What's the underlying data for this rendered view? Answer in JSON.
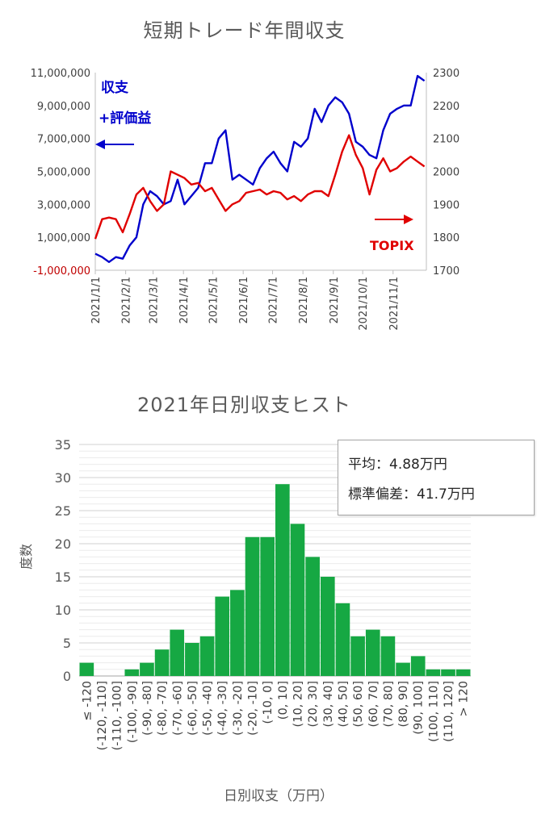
{
  "chart_data": [
    {
      "type": "line",
      "title": "短期トレード年間収支",
      "left_axis": {
        "ticks": [
          "11,000,000",
          "9,000,000",
          "7,000,000",
          "5,000,000",
          "3,000,000",
          "1,000,000",
          "-1,000,000"
        ],
        "tick_values": [
          11000000,
          9000000,
          7000000,
          5000000,
          3000000,
          1000000,
          -1000000
        ],
        "ylim": [
          -1000000,
          11000000
        ],
        "negative_color": "#c00000"
      },
      "right_axis": {
        "ticks": [
          "2300",
          "2200",
          "2100",
          "2000",
          "1900",
          "1800",
          "1700"
        ],
        "tick_values": [
          2300,
          2200,
          2100,
          2000,
          1900,
          1800,
          1700
        ],
        "ylim": [
          1700,
          2300
        ]
      },
      "x_ticks": [
        "2021/1/1",
        "2021/2/1",
        "2021/3/1",
        "2021/4/1",
        "2021/5/1",
        "2021/6/1",
        "2021/7/1",
        "2021/8/1",
        "2021/9/1",
        "2021/10/1",
        "2021/11/1"
      ],
      "series": [
        {
          "name": "収支\n+評価益",
          "label_lines": [
            "収支",
            "+評価益"
          ],
          "axis": "left",
          "color": "#0000cc",
          "x": [
            "2021-01-01",
            "2021-01-08",
            "2021-01-15",
            "2021-01-22",
            "2021-01-29",
            "2021-02-05",
            "2021-02-12",
            "2021-02-19",
            "2021-02-26",
            "2021-03-05",
            "2021-03-12",
            "2021-03-19",
            "2021-03-26",
            "2021-04-02",
            "2021-04-09",
            "2021-04-16",
            "2021-04-23",
            "2021-04-30",
            "2021-05-07",
            "2021-05-14",
            "2021-05-21",
            "2021-05-28",
            "2021-06-04",
            "2021-06-11",
            "2021-06-18",
            "2021-06-25",
            "2021-07-02",
            "2021-07-09",
            "2021-07-16",
            "2021-07-23",
            "2021-07-30",
            "2021-08-06",
            "2021-08-13",
            "2021-08-20",
            "2021-08-27",
            "2021-09-03",
            "2021-09-10",
            "2021-09-17",
            "2021-09-24",
            "2021-10-01",
            "2021-10-08",
            "2021-10-15",
            "2021-10-22",
            "2021-10-29",
            "2021-11-05",
            "2021-11-12",
            "2021-11-19",
            "2021-11-26",
            "2021-12-03"
          ],
          "values": [
            0,
            -200000,
            -500000,
            -200000,
            -300000,
            500000,
            1000000,
            3000000,
            3800000,
            3500000,
            3000000,
            3200000,
            4500000,
            3000000,
            3500000,
            4000000,
            5500000,
            5500000,
            7000000,
            7500000,
            4500000,
            4800000,
            4500000,
            4200000,
            5200000,
            5800000,
            6200000,
            5500000,
            5000000,
            6800000,
            6500000,
            7000000,
            8800000,
            8000000,
            9000000,
            9500000,
            9200000,
            8500000,
            6800000,
            6500000,
            6000000,
            5800000,
            7500000,
            8500000,
            8800000,
            9000000,
            9000000,
            10800000,
            10500000
          ]
        },
        {
          "name": "TOPIX",
          "axis": "right",
          "color": "#e00000",
          "x": [
            "2021-01-01",
            "2021-01-08",
            "2021-01-15",
            "2021-01-22",
            "2021-01-29",
            "2021-02-05",
            "2021-02-12",
            "2021-02-19",
            "2021-02-26",
            "2021-03-05",
            "2021-03-12",
            "2021-03-19",
            "2021-03-26",
            "2021-04-02",
            "2021-04-09",
            "2021-04-16",
            "2021-04-23",
            "2021-04-30",
            "2021-05-07",
            "2021-05-14",
            "2021-05-21",
            "2021-05-28",
            "2021-06-04",
            "2021-06-11",
            "2021-06-18",
            "2021-06-25",
            "2021-07-02",
            "2021-07-09",
            "2021-07-16",
            "2021-07-23",
            "2021-07-30",
            "2021-08-06",
            "2021-08-13",
            "2021-08-20",
            "2021-08-27",
            "2021-09-03",
            "2021-09-10",
            "2021-09-17",
            "2021-09-24",
            "2021-10-01",
            "2021-10-08",
            "2021-10-15",
            "2021-10-22",
            "2021-10-29",
            "2021-11-05",
            "2021-11-12",
            "2021-11-19",
            "2021-11-26",
            "2021-12-03"
          ],
          "values": [
            1795,
            1855,
            1860,
            1855,
            1815,
            1870,
            1930,
            1950,
            1910,
            1880,
            1900,
            2000,
            1990,
            1980,
            1960,
            1965,
            1940,
            1950,
            1915,
            1880,
            1900,
            1910,
            1935,
            1940,
            1945,
            1930,
            1940,
            1935,
            1915,
            1925,
            1910,
            1930,
            1940,
            1940,
            1925,
            1990,
            2060,
            2110,
            2050,
            2010,
            1930,
            2005,
            2040,
            2000,
            2010,
            2030,
            2045,
            2030,
            2015
          ]
        }
      ],
      "annotations": {
        "arrow_left": "left",
        "arrow_right": "right"
      },
      "grid": false,
      "legend": "none"
    },
    {
      "type": "bar",
      "title": "2021年日別収支ヒスト",
      "xlabel": "日別収支（万円）",
      "ylabel": "度数",
      "ylim": [
        0,
        35
      ],
      "y_ticks": [
        0,
        5,
        10,
        15,
        20,
        25,
        30,
        35
      ],
      "categories": [
        "≤ -120",
        "(-120, -110]",
        "(-110, -100]",
        "(-100, -90]",
        "(-90, -80]",
        "(-80, -70]",
        "(-70, -60]",
        "(-60, -50]",
        "(-50, -40]",
        "(-40, -30]",
        "(-30, -20]",
        "(-20, -10]",
        "(-10, 0]",
        "(0, 10]",
        "(10, 20]",
        "(20, 30]",
        "(30, 40]",
        "(40, 50]",
        "(50, 60]",
        "(60, 70]",
        "(70, 80]",
        "(80, 90]",
        "(90, 100]",
        "(100, 110]",
        "(110, 120]",
        "> 120"
      ],
      "values": [
        2,
        0,
        0,
        1,
        2,
        4,
        7,
        5,
        6,
        12,
        13,
        21,
        21,
        29,
        23,
        18,
        15,
        11,
        6,
        7,
        6,
        2,
        3,
        1,
        1,
        1
      ],
      "bar_color": "#16a843",
      "grid": true,
      "legend": "none"
    }
  ],
  "stats": {
    "line1": "平均：4.88万円",
    "line2": "標準偏差：41.7万円"
  }
}
